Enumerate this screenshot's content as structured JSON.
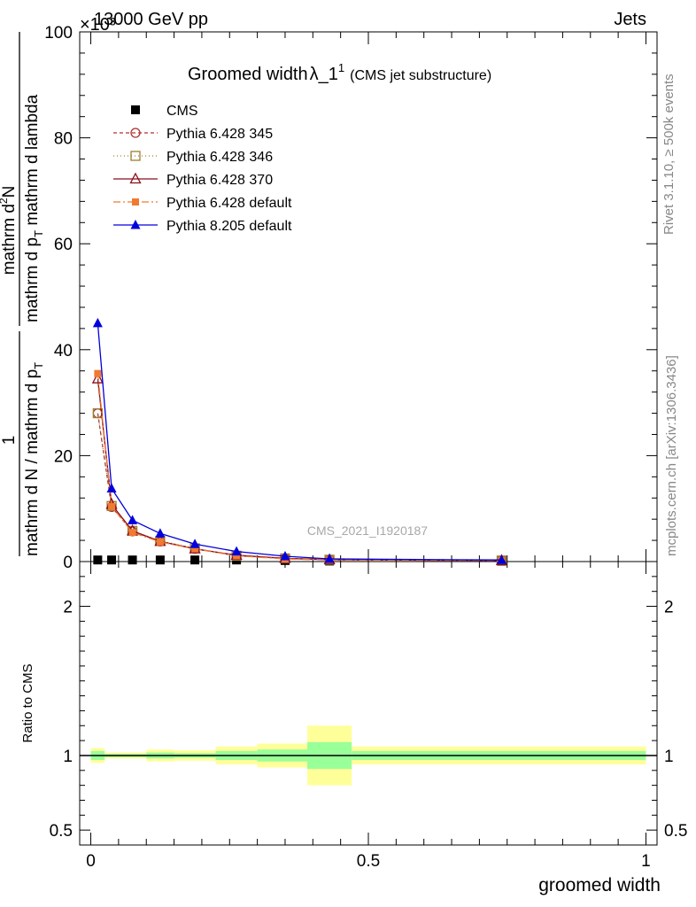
{
  "header": {
    "left_text": "13000 GeV pp",
    "right_text": "Jets",
    "exponent_label": "×10³"
  },
  "side": {
    "rivet": "Rivet 3.1.10, ≥ 500k events",
    "mcplots": "mcplots.cern.ch [arXiv:1306.3436]"
  },
  "chart_data": {
    "type": "line",
    "title_main": "Groomed width",
    "title_lambda": "λ_1",
    "title_sup": "1",
    "title_paren": "(CMS jet substructure)",
    "watermark": "CMS_2021_I1920187",
    "ylabel_top_num": "1",
    "ylabel_top_den": "mathrm d N / mathrm d p",
    "ylabel_top_sub": "T",
    "ylabel_frac_num": "mathrm d",
    "ylabel_frac_num_sup": "2",
    "ylabel_frac_num2": "N",
    "ylabel_frac_den": "mathrm d p",
    "ylabel_frac_den_sub": "T",
    "ylabel_frac_den2": " mathrm d lambda",
    "ylabel_ratio": "Ratio to CMS",
    "xlabel": "groomed width",
    "xlim": [
      -0.02,
      1.02
    ],
    "ylim": [
      0,
      100
    ],
    "ratio_ylim": [
      0.4,
      2.3
    ],
    "x_ticks": [
      0,
      0.5,
      1
    ],
    "x_tick_labels": [
      "0",
      "0.5",
      "1"
    ],
    "y_ticks": [
      0,
      20,
      40,
      60,
      80,
      100
    ],
    "y_tick_labels": [
      "0",
      "20",
      "40",
      "60",
      "80",
      "100"
    ],
    "ratio_ticks": [
      0.5,
      1,
      2
    ],
    "ratio_tick_labels": [
      "0.5",
      "1",
      "2"
    ],
    "x": [
      0.0125,
      0.0375,
      0.075,
      0.125,
      0.1875,
      0.2625,
      0.35,
      0.43,
      0.74
    ],
    "series": [
      {
        "name": "CMS",
        "color": "#000000",
        "marker": "square",
        "values": [
          0.3,
          0.3,
          0.3,
          0.3,
          0.3,
          0.3,
          0.2,
          0.1,
          0.05
        ]
      },
      {
        "name": "Pythia 6.428 345",
        "color": "#b03030",
        "marker": "circle",
        "dash": "4,3",
        "values": [
          28.0,
          10.3,
          5.7,
          3.8,
          2.4,
          1.1,
          0.6,
          0.35,
          0.2
        ]
      },
      {
        "name": "Pythia 6.428 346",
        "color": "#9a8030",
        "marker": "open-square",
        "dash": "1,3",
        "values": [
          28.0,
          10.5,
          5.8,
          3.9,
          2.5,
          1.1,
          0.6,
          0.35,
          0.2
        ]
      },
      {
        "name": "Pythia 6.428 370",
        "color": "#8b0e1e",
        "marker": "triangle-open",
        "dash": "",
        "values": [
          34.5,
          10.8,
          5.8,
          3.8,
          2.4,
          1.2,
          0.6,
          0.35,
          0.2
        ]
      },
      {
        "name": "Pythia 6.428 default",
        "color": "#f07a30",
        "marker": "filled-square",
        "dash": "8,3,2,3",
        "values": [
          35.5,
          10.4,
          5.5,
          3.7,
          2.4,
          1.1,
          0.5,
          0.3,
          0.2
        ]
      },
      {
        "name": "Pythia 8.205 default",
        "color": "#0000dd",
        "marker": "triangle",
        "dash": "",
        "values": [
          45.0,
          13.8,
          7.8,
          5.3,
          3.3,
          1.9,
          1.0,
          0.5,
          0.3
        ]
      }
    ],
    "ratio_bands": [
      {
        "x0": 0.0,
        "x1": 0.025,
        "inner": 0.03,
        "outer": 0.05
      },
      {
        "x0": 0.025,
        "x1": 0.1,
        "inner": 0.01,
        "outer": 0.02
      },
      {
        "x0": 0.1,
        "x1": 0.15,
        "inner": 0.02,
        "outer": 0.04
      },
      {
        "x0": 0.15,
        "x1": 0.225,
        "inner": 0.015,
        "outer": 0.035
      },
      {
        "x0": 0.225,
        "x1": 0.3,
        "inner": 0.03,
        "outer": 0.06
      },
      {
        "x0": 0.3,
        "x1": 0.39,
        "inner": 0.04,
        "outer": 0.08
      },
      {
        "x0": 0.39,
        "x1": 0.47,
        "inner": 0.09,
        "outer": 0.2
      },
      {
        "x0": 0.47,
        "x1": 1.0,
        "inner": 0.03,
        "outer": 0.06
      }
    ]
  }
}
